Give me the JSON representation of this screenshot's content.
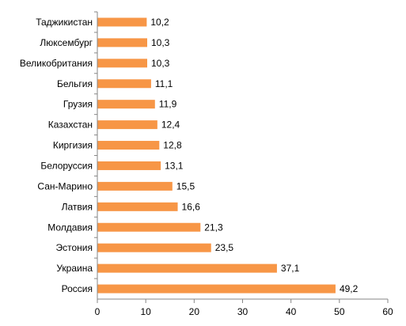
{
  "chart_data": {
    "type": "bar",
    "orientation": "horizontal",
    "categories": [
      "Таджикистан",
      "Люксембург",
      "Великобритания",
      "Бельгия",
      "Грузия",
      "Казахстан",
      "Киргизия",
      "Белоруссия",
      "Сан-Марино",
      "Латвия",
      "Молдавия",
      "Эстония",
      "Украина",
      "Россия"
    ],
    "values": [
      10.2,
      10.3,
      10.3,
      11.1,
      11.9,
      12.4,
      12.8,
      13.1,
      15.5,
      16.6,
      21.3,
      23.5,
      37.1,
      49.2
    ],
    "value_labels": [
      "10,2",
      "10,3",
      "10,3",
      "11,1",
      "11,9",
      "12,4",
      "12,8",
      "13,1",
      "15,5",
      "16,6",
      "21,3",
      "23,5",
      "37,1",
      "49,2"
    ],
    "xlim": [
      0,
      60
    ],
    "x_ticks": [
      0,
      10,
      20,
      30,
      40,
      50,
      60
    ],
    "title": "",
    "xlabel": "",
    "ylabel": "",
    "grid": false,
    "bar_color": "#F79646"
  }
}
